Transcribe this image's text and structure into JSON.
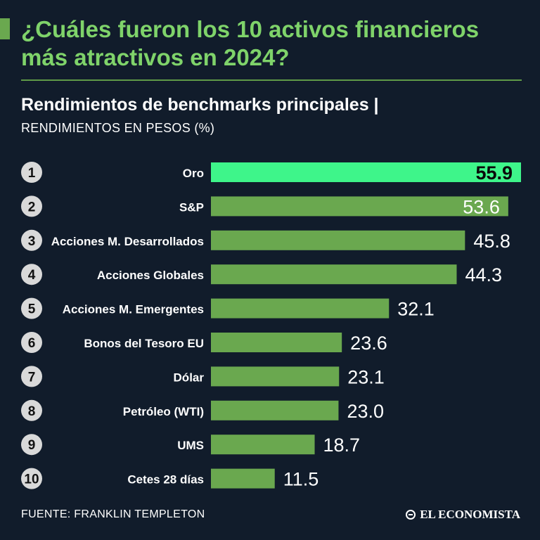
{
  "title": "¿Cuáles fueron los 10 activos financieros más atractivos en 2024?",
  "subtitle": "Rendimientos de benchmarks principales |",
  "unit_label": "RENDIMIENTOS EN PESOS (%)",
  "source": "FUENTE: FRANKLIN TEMPLETON",
  "brand": "EL ECONOMISTA",
  "colors": {
    "background": "#111c2b",
    "title": "#7fd36a",
    "bar": "#6aa84f",
    "highlight_bar": "#3ef58a",
    "rank_circle": "#d9d9d9"
  },
  "chart_data": {
    "type": "bar",
    "orientation": "horizontal",
    "ranks": [
      "1",
      "2",
      "3",
      "4",
      "5",
      "6",
      "7",
      "8",
      "9",
      "10"
    ],
    "categories": [
      "Oro",
      "S&P",
      "Acciones M. Desarrollados",
      "Acciones Globales",
      "Acciones M. Emergentes",
      "Bonos del Tesoro EU",
      "Dólar",
      "Petróleo (WTI)",
      "UMS",
      "Cetes 28 días"
    ],
    "values": [
      55.9,
      53.6,
      45.8,
      44.3,
      32.1,
      23.6,
      23.1,
      23.0,
      18.7,
      11.5
    ],
    "value_labels": [
      "55.9",
      "53.6",
      "45.8",
      "44.3",
      "32.1",
      "23.6",
      "23.1",
      "23.0",
      "18.7",
      "11.5"
    ],
    "highlight_index": 0,
    "xlim": [
      0,
      55.9
    ]
  }
}
